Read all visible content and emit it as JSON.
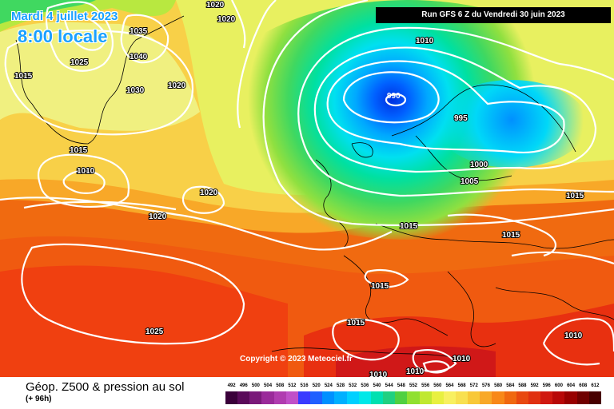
{
  "header": {
    "date": "Mardi 4 juillet 2023",
    "time": "8:00 locale",
    "run": "Run GFS 6 Z du Vendredi 30 juin 2023"
  },
  "copyright": "Copyright © 2023 Meteociel.fr",
  "footer": {
    "title": "Géop. Z500 & pression au sol",
    "subtitle": "(+ 96h)"
  },
  "pressure_labels": [
    "1020",
    "1020",
    "1035",
    "1040",
    "1025",
    "1030",
    "1015",
    "1020",
    "1015",
    "1010",
    "1020",
    "1020",
    "1010",
    "990",
    "995",
    "1000",
    "1005",
    "1015",
    "1015",
    "1015",
    "1015",
    "1025",
    "1015",
    "1010",
    "1010",
    "1010",
    "1010"
  ],
  "scale": {
    "labels": [
      "492",
      "496",
      "500",
      "504",
      "508",
      "512",
      "516",
      "520",
      "524",
      "528",
      "532",
      "536",
      "540",
      "544",
      "548",
      "552",
      "556",
      "560",
      "564",
      "568",
      "572",
      "576",
      "580",
      "584",
      "588",
      "592",
      "596",
      "600",
      "604",
      "608",
      "612"
    ],
    "colors": [
      "#3a003a",
      "#5a0a5a",
      "#7a1a7a",
      "#9a2a9a",
      "#b03cb0",
      "#c050c8",
      "#3a3aff",
      "#2060ff",
      "#0090ff",
      "#00b0ff",
      "#00d0ff",
      "#00e8e8",
      "#00e0b0",
      "#20d080",
      "#50d040",
      "#90e030",
      "#c0e830",
      "#e8f040",
      "#f8f060",
      "#f8e050",
      "#f8c838",
      "#f8a828",
      "#f88818",
      "#f06810",
      "#e84810",
      "#e03010",
      "#d01810",
      "#b80808",
      "#980000",
      "#700000",
      "#480000"
    ]
  }
}
